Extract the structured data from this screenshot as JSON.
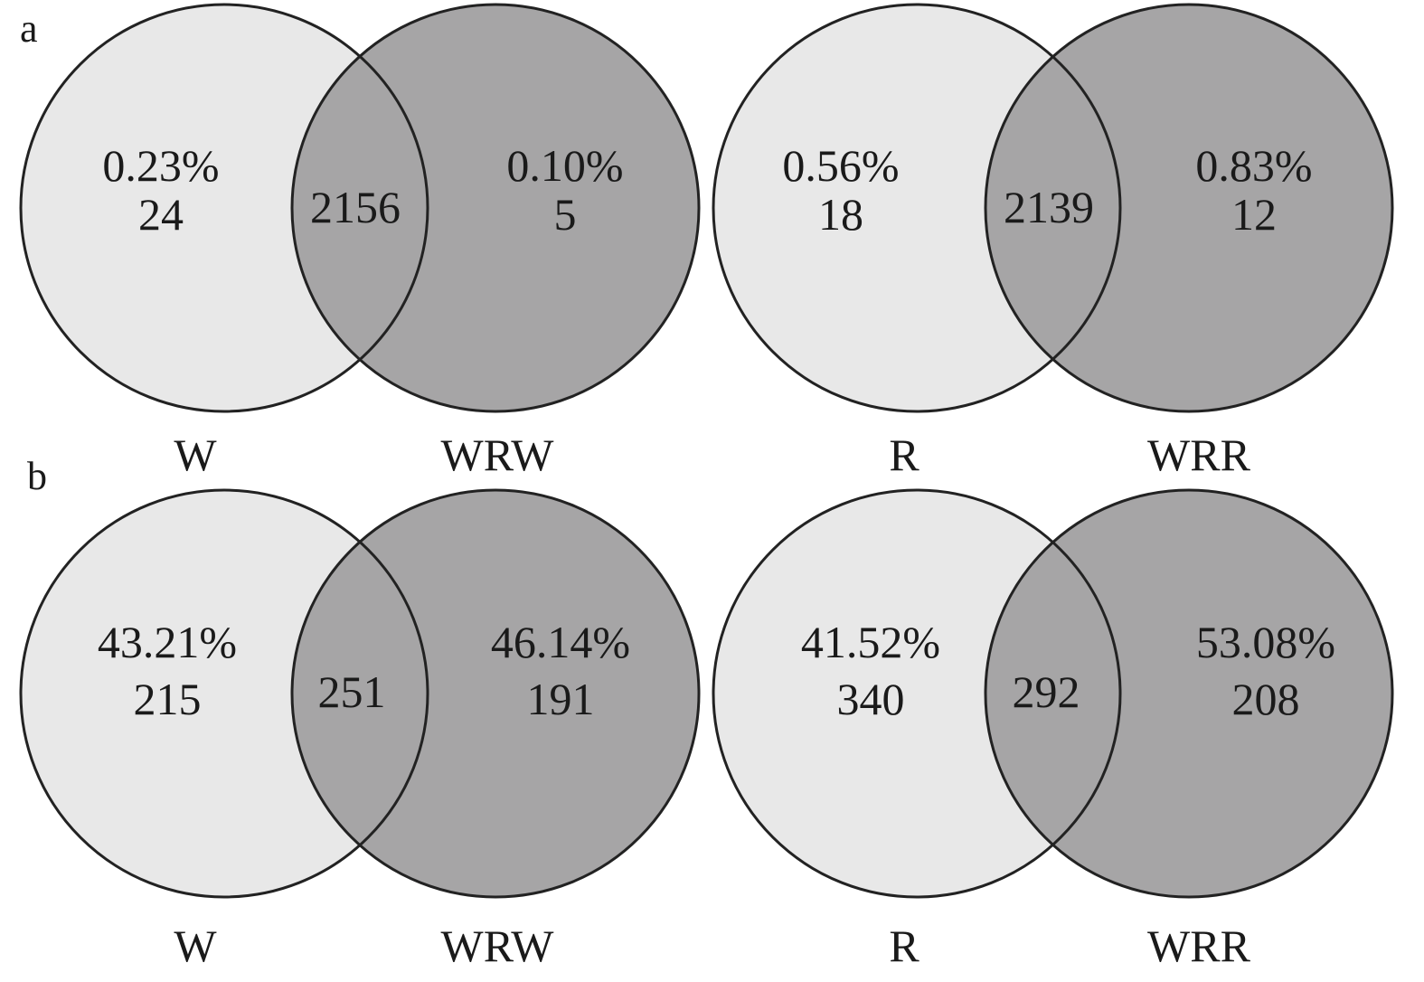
{
  "colors": {
    "left_fill": "#e8e8e8",
    "right_fill": "#a6a5a6",
    "overlap_fill": "#a6a5a6",
    "stroke": "#222222"
  },
  "panels": [
    {
      "letter": "a",
      "diagrams": [
        {
          "left_label": "W",
          "right_label": "WRW",
          "left_pct": "0.23%",
          "left_count": "24",
          "overlap": "2156",
          "right_pct": "0.10%",
          "right_count": "5"
        },
        {
          "left_label": "R",
          "right_label": "WRR",
          "left_pct": "0.56%",
          "left_count": "18",
          "overlap": "2139",
          "right_pct": "0.83%",
          "right_count": "12"
        }
      ]
    },
    {
      "letter": "b",
      "diagrams": [
        {
          "left_label": "W",
          "right_label": "WRW",
          "left_pct": "43.21%",
          "left_count": "215",
          "overlap": "251",
          "right_pct": "46.14%",
          "right_count": "191"
        },
        {
          "left_label": "R",
          "right_label": "WRR",
          "left_pct": "41.52%",
          "left_count": "340",
          "overlap": "292",
          "right_pct": "53.08%",
          "right_count": "208"
        }
      ]
    }
  ]
}
